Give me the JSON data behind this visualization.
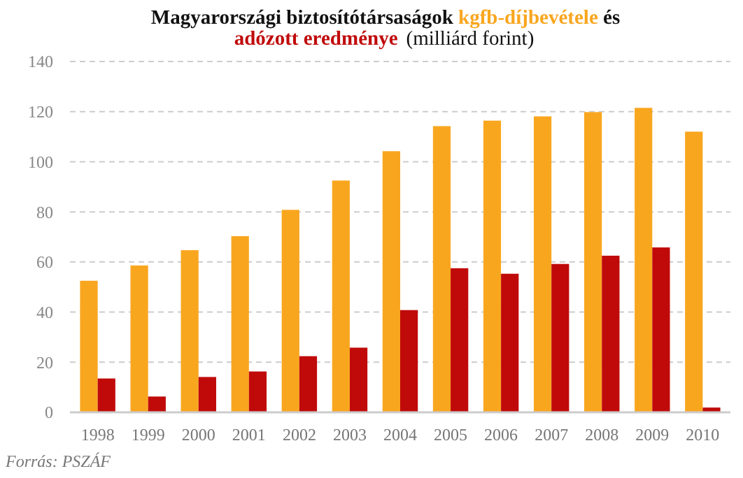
{
  "chart_data": {
    "type": "bar",
    "title": "Magyarországi biztosítótársaságok",
    "subtitle": "(milliárd forint)",
    "annotations": [
      "és",
      "Forrás: PSZÁF"
    ],
    "categories": [
      "1998",
      "1999",
      "2000",
      "2001",
      "2002",
      "2003",
      "2004",
      "2005",
      "2006",
      "2007",
      "2008",
      "2009",
      "2010"
    ],
    "series": [
      {
        "name": "kgfb-díjbevétele",
        "color": "#f9a61f",
        "values": [
          52.5,
          58.6,
          64.7,
          70.3,
          80.8,
          92.5,
          104.2,
          114.2,
          116.4,
          118.1,
          119.8,
          121.5,
          112
        ]
      },
      {
        "name": "adózott eredménye",
        "color": "#c00a0a",
        "values": [
          13.5,
          6.3,
          14.1,
          16.3,
          22.4,
          25.8,
          40.8,
          57.5,
          55.3,
          59.2,
          62.5,
          65.8,
          1.9
        ]
      }
    ],
    "ylim": [
      0,
      140
    ],
    "yticks": [
      0,
      20,
      40,
      60,
      80,
      100,
      120,
      140
    ],
    "grid": "y",
    "legend": "top"
  }
}
